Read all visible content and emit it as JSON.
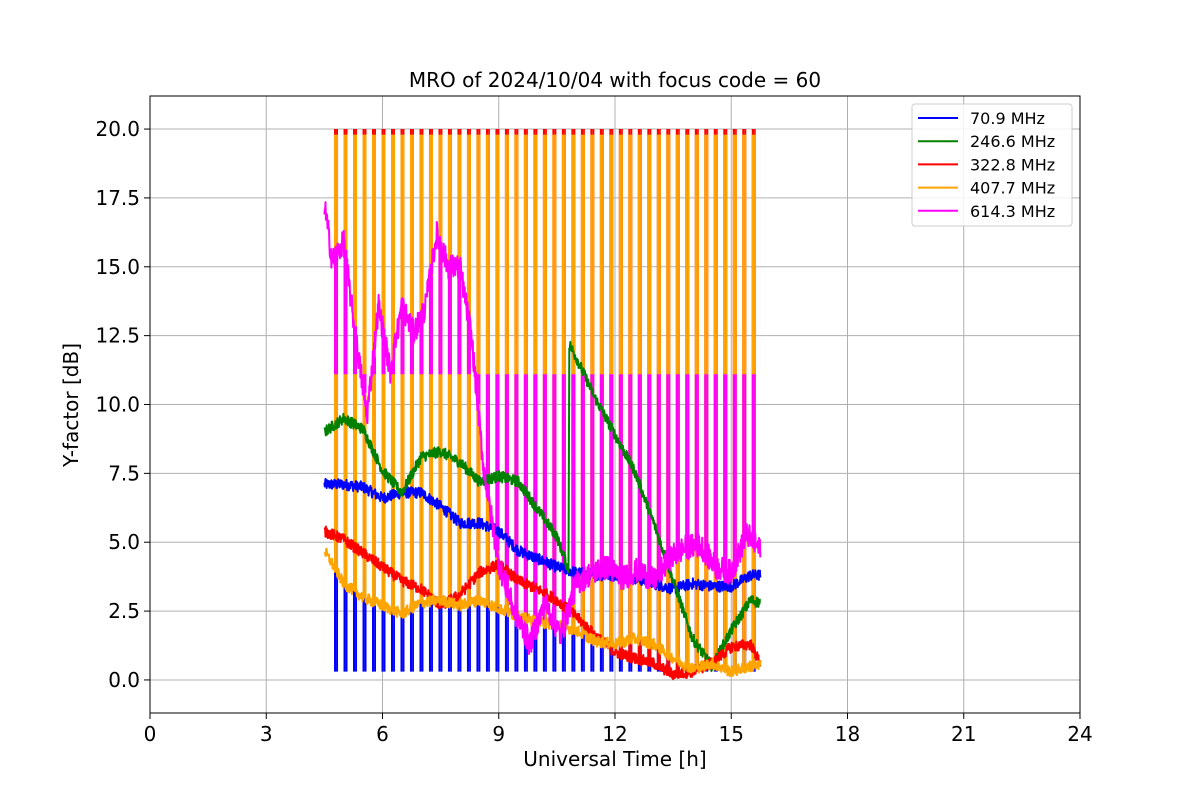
{
  "chart_data": {
    "type": "line",
    "title": "MRO of 2024/10/04 with focus code = 60",
    "xlabel": "Universal Time [h]",
    "ylabel": "Y-factor [dB]",
    "xlim": [
      0,
      24
    ],
    "ylim": [
      -1.2,
      21.2
    ],
    "xticks": [
      0,
      3,
      6,
      9,
      12,
      15,
      18,
      21,
      24
    ],
    "yticks": [
      0.0,
      2.5,
      5.0,
      7.5,
      10.0,
      12.5,
      15.0,
      17.5,
      20.0
    ],
    "grid": true,
    "legend_position": "top-right",
    "calibration_pulses": {
      "start": 4.78,
      "end": 15.72,
      "spacing": 0.245,
      "description_values": {
        "70.9 MHz": 0.3,
        "322.8 MHz": 20.0,
        "407.7 MHz": 19.8,
        "614.3 MHz": 11.1
      }
    },
    "series": [
      {
        "name": " 70.9 MHz",
        "color": "#0000ff",
        "x": [
          4.5,
          5.0,
          5.5,
          6.0,
          6.5,
          7.0,
          7.5,
          8.0,
          8.5,
          9.0,
          9.5,
          10.0,
          10.5,
          11.0,
          11.5,
          12.0,
          12.5,
          13.0,
          13.5,
          14.0,
          14.5,
          15.0,
          15.5,
          15.75
        ],
        "y": [
          7.1,
          7.1,
          7.0,
          6.6,
          6.8,
          6.8,
          6.3,
          5.7,
          5.7,
          5.4,
          4.7,
          4.4,
          4.1,
          3.9,
          3.8,
          3.8,
          3.7,
          3.5,
          3.3,
          3.5,
          3.4,
          3.4,
          3.8,
          3.8
        ]
      },
      {
        "name": "246.6 MHz",
        "color": "#008000",
        "x": [
          4.5,
          5.0,
          5.5,
          6.0,
          6.5,
          7.0,
          7.5,
          8.0,
          8.5,
          9.0,
          9.5,
          10.0,
          10.5,
          10.8,
          10.82,
          11.0,
          11.5,
          12.0,
          12.5,
          13.0,
          13.5,
          14.0,
          14.5,
          15.0,
          15.5,
          15.75
        ],
        "y": [
          9.0,
          9.5,
          9.1,
          7.6,
          6.8,
          8.1,
          8.3,
          7.9,
          7.2,
          7.4,
          7.2,
          6.2,
          5.2,
          4.0,
          12.2,
          11.7,
          10.2,
          8.9,
          7.6,
          5.7,
          3.6,
          1.5,
          0.5,
          1.8,
          2.9,
          2.8
        ]
      },
      {
        "name": "322.8 MHz",
        "color": "#ff0000",
        "x": [
          4.5,
          5.0,
          5.5,
          6.0,
          6.5,
          7.0,
          7.5,
          8.0,
          8.5,
          9.0,
          9.5,
          10.0,
          10.5,
          11.0,
          11.5,
          12.0,
          12.5,
          13.0,
          13.5,
          14.0,
          14.5,
          15.0,
          15.5,
          15.75
        ],
        "y": [
          5.4,
          5.1,
          4.6,
          4.1,
          3.6,
          3.3,
          2.7,
          3.1,
          3.9,
          4.2,
          3.6,
          3.3,
          2.9,
          2.3,
          1.6,
          1.0,
          0.8,
          0.6,
          0.2,
          0.3,
          0.6,
          1.2,
          1.3,
          0.6
        ]
      },
      {
        "name": "407.7 MHz",
        "color": "#ffa500",
        "x": [
          4.5,
          5.0,
          5.5,
          6.0,
          6.5,
          7.0,
          7.5,
          8.0,
          8.5,
          9.0,
          9.5,
          10.0,
          10.5,
          11.0,
          11.5,
          12.0,
          12.5,
          13.0,
          13.5,
          14.0,
          14.5,
          15.0,
          15.5,
          15.75
        ],
        "y": [
          4.7,
          3.5,
          3.0,
          2.7,
          2.4,
          2.8,
          2.9,
          2.7,
          2.9,
          2.6,
          2.3,
          2.1,
          2.0,
          1.8,
          1.4,
          1.3,
          1.5,
          1.3,
          0.8,
          0.4,
          0.6,
          0.3,
          0.5,
          0.5
        ]
      },
      {
        "name": "614.3 MHz",
        "color": "#ff00ff",
        "x": [
          4.5,
          4.7,
          5.0,
          5.3,
          5.6,
          5.9,
          6.2,
          6.5,
          6.8,
          7.1,
          7.4,
          7.7,
          8.0,
          8.3,
          8.6,
          9.0,
          9.4,
          9.8,
          10.2,
          10.6,
          11.0,
          11.4,
          11.8,
          12.2,
          12.6,
          13.0,
          13.4,
          13.8,
          14.2,
          14.6,
          15.0,
          15.4,
          15.75
        ],
        "y": [
          17.3,
          15.2,
          15.9,
          12.5,
          9.6,
          13.6,
          11.2,
          13.6,
          12.6,
          13.5,
          16.2,
          15.0,
          15.0,
          12.4,
          7.8,
          4.2,
          2.5,
          1.3,
          2.8,
          1.6,
          3.5,
          3.9,
          4.1,
          3.7,
          4.0,
          3.6,
          4.4,
          4.8,
          4.9,
          4.1,
          3.9,
          5.3,
          4.7
        ]
      }
    ]
  }
}
